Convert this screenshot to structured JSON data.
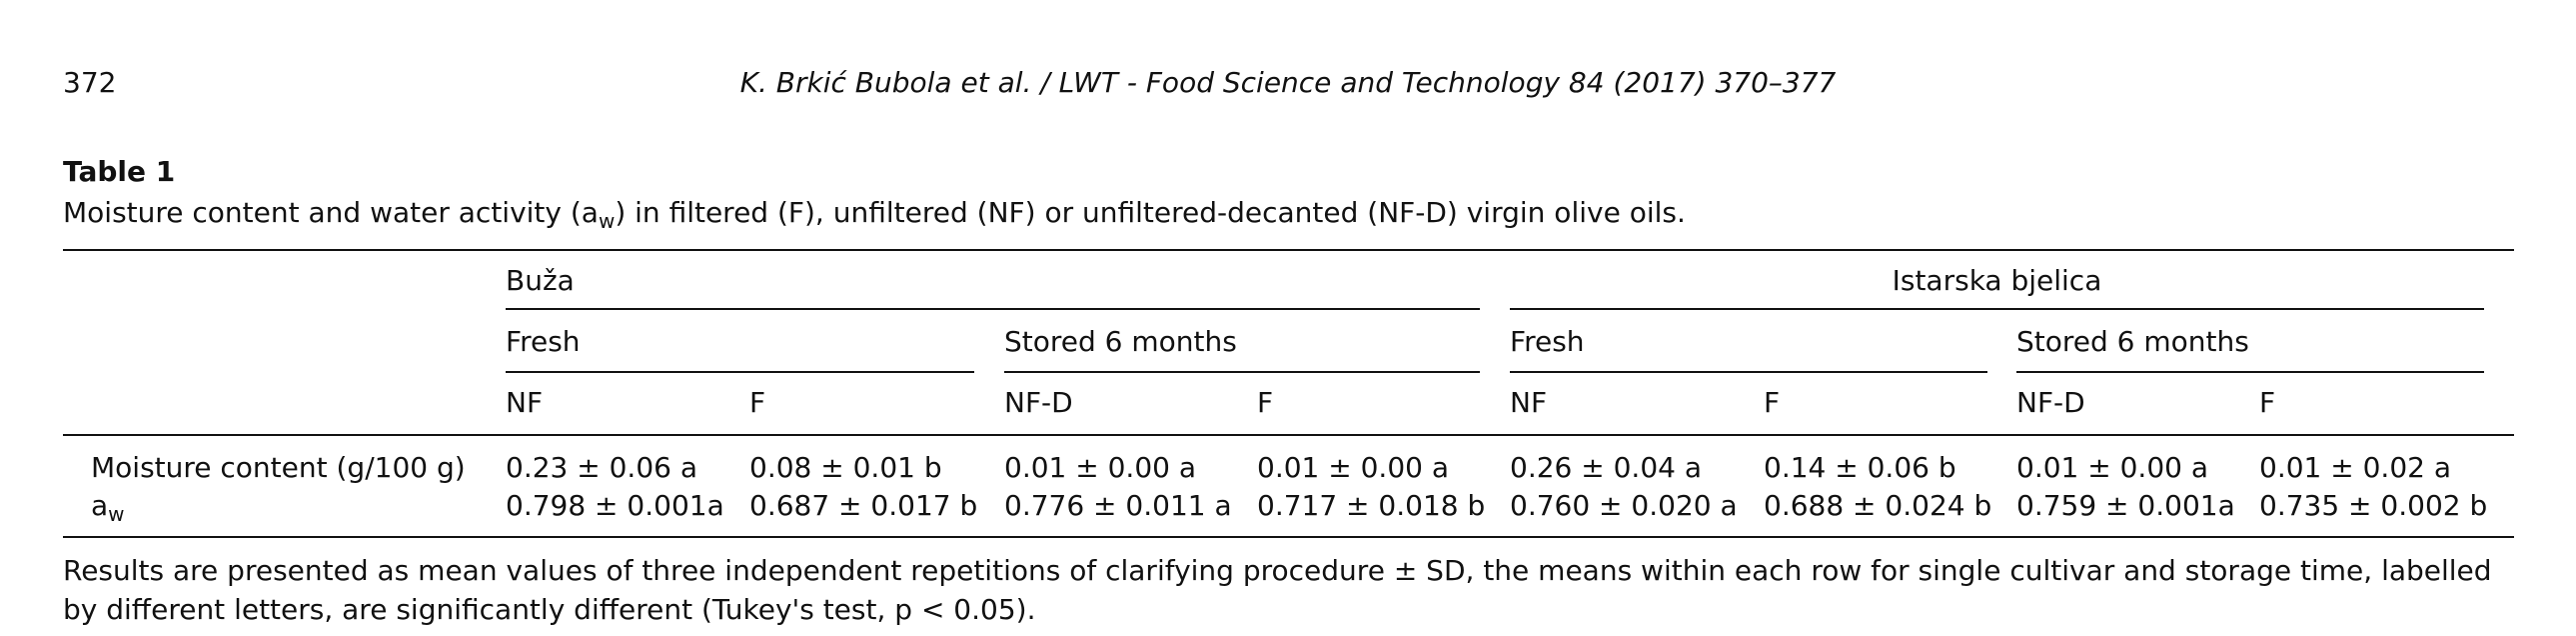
{
  "header": {
    "page_number": "372",
    "citation": "K. Brkić Bubola et al. / LWT - Food Science and Technology 84 (2017) 370–377"
  },
  "table": {
    "label": "Table 1",
    "caption": [
      "Moisture content and water activity (a",
      "w",
      ") in filtered (F), unfiltered (NF) or unfiltered-decanted (NF-D) virgin olive oils."
    ],
    "cultivars": [
      "Buža",
      "Istarska bjelica"
    ],
    "storage": [
      "Fresh",
      "Stored 6 months",
      "Fresh",
      "Stored 6 months"
    ],
    "treatments": [
      "NF",
      "F",
      "NF-D",
      "F",
      "NF",
      "F",
      "NF-D",
      "F"
    ],
    "rows": [
      {
        "label": [
          "Moisture content (g/100 g)"
        ],
        "cells": [
          "0.23 ± 0.06 a",
          "0.08 ± 0.01 b",
          "0.01 ± 0.00 a",
          "0.01 ± 0.00 a",
          "0.26 ± 0.04 a",
          "0.14 ± 0.06 b",
          "0.01 ± 0.00 a",
          "0.01 ± 0.02 a"
        ]
      },
      {
        "label": [
          "a",
          "w"
        ],
        "cells": [
          "0.798 ± 0.001a",
          "0.687 ± 0.017 b",
          "0.776 ± 0.011 a",
          "0.717 ± 0.018 b",
          "0.760 ± 0.020 a",
          "0.688 ± 0.024 b",
          "0.759 ± 0.001a",
          "0.735 ± 0.002 b"
        ]
      }
    ],
    "footnote": "Results are presented as mean values of three independent repetitions of clarifying procedure ± SD, the means within each row for single cultivar and storage time, labelled by different letters, are significantly different (Tukey's test, p < 0.05)."
  }
}
